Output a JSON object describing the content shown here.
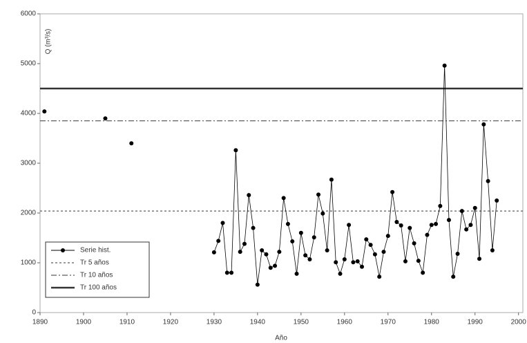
{
  "chart_data": {
    "type": "line",
    "y_label": "Q (m³/s)",
    "x_label": "Año",
    "xlim": [
      1890,
      2001
    ],
    "xticks": [
      1890,
      1900,
      1910,
      1920,
      1930,
      1940,
      1950,
      1960,
      1970,
      1980,
      1990,
      2000
    ],
    "ylim": [
      0,
      6000
    ],
    "yticks": [
      0,
      1000,
      2000,
      3000,
      4000,
      5000,
      6000
    ],
    "legend": "lower left",
    "series": [
      {
        "name": "Serie hist.",
        "color": "#000000",
        "x": [
          1891,
          1900,
          1905,
          1908,
          1911,
          1920,
          1930,
          1931,
          1932,
          1933,
          1934,
          1935,
          1936,
          1937,
          1938,
          1939,
          1940,
          1941,
          1942,
          1943,
          1944,
          1945,
          1946,
          1947,
          1948,
          1949,
          1950,
          1951,
          1952,
          1953,
          1954,
          1955,
          1956,
          1957,
          1958,
          1959,
          1960,
          1961,
          1962,
          1963,
          1964,
          1965,
          1966,
          1967,
          1968,
          1969,
          1970,
          1971,
          1972,
          1973,
          1974,
          1975,
          1976,
          1977,
          1978,
          1979,
          1980,
          1981,
          1982,
          1983,
          1984,
          1985,
          1986,
          1987,
          1988,
          1989,
          1990,
          1991,
          1992,
          1993,
          1994,
          1995
        ],
        "values": [
          4040,
          null,
          3900,
          null,
          3400,
          null,
          1210,
          1440,
          1800,
          800,
          800,
          3260,
          1220,
          1380,
          2360,
          1700,
          560,
          1250,
          1170,
          900,
          940,
          1220,
          2300,
          1780,
          1430,
          780,
          1600,
          1150,
          1070,
          1510,
          2370,
          1990,
          1250,
          2670,
          1010,
          780,
          1070,
          1760,
          1010,
          1030,
          920,
          1470,
          1360,
          1170,
          720,
          1220,
          1540,
          2420,
          1820,
          1750,
          1030,
          1700,
          1390,
          1040,
          800,
          1560,
          1760,
          1780,
          2140,
          4960,
          1860,
          720,
          1180,
          2040,
          1670,
          1760,
          2100,
          1080,
          3780,
          2640,
          1250,
          2250
        ]
      }
    ],
    "reference_lines": [
      {
        "name": "Tr 5 años",
        "value": 2040,
        "style": "dotted",
        "color": "#333333"
      },
      {
        "name": "Tr 10 años",
        "value": 3850,
        "style": "dashdot",
        "color": "#333333"
      },
      {
        "name": "Tr 100 años",
        "value": 4500,
        "style": "solid",
        "color": "#333333"
      }
    ]
  }
}
